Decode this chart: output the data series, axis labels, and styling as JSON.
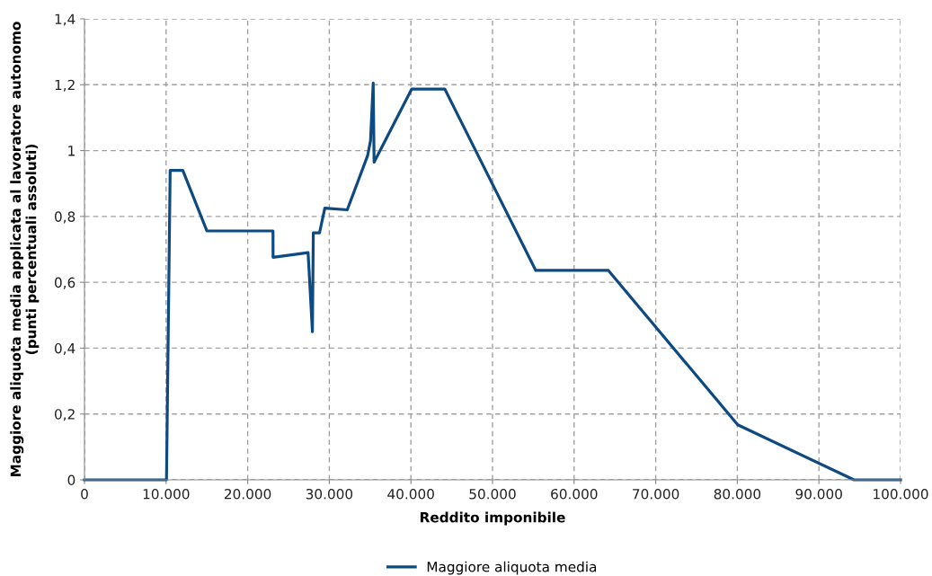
{
  "chart_data": {
    "type": "line",
    "xlabel": "Reddito imponibile",
    "ylabel": "Maggiore aliquota media applicata al lavoratore autonomo\n(punti percentuali assoluti)",
    "series": [
      {
        "name": "Maggiore aliquota media",
        "color": "#0d4a82",
        "x": [
          0,
          10050,
          10500,
          12050,
          15000,
          23100,
          23110,
          27400,
          27930,
          28040,
          28800,
          29450,
          32200,
          34700,
          35050,
          35380,
          35490,
          40100,
          44150,
          55300,
          64200,
          80050,
          94300,
          100000
        ],
        "values": [
          0,
          0,
          0.94,
          0.94,
          0.756,
          0.756,
          0.676,
          0.69,
          0.45,
          0.75,
          0.75,
          0.825,
          0.82,
          0.985,
          1.03,
          1.205,
          0.965,
          1.187,
          1.187,
          0.636,
          0.636,
          0.167,
          0,
          0
        ]
      }
    ],
    "xlim": [
      0,
      100000
    ],
    "xticks": [
      0,
      {
        "value": 10000,
        "label": "10.000"
      },
      {
        "value": 20000,
        "label": "20.000"
      },
      {
        "value": 30000,
        "label": "30.000"
      },
      {
        "value": 40000,
        "label": "40.000"
      },
      {
        "value": 50000,
        "label": "50.000"
      },
      {
        "value": 60000,
        "label": "60.000"
      },
      {
        "value": 70000,
        "label": "70.000"
      },
      {
        "value": 80000,
        "label": "80.000"
      },
      {
        "value": 90000,
        "label": "90.000"
      },
      {
        "value": 100000,
        "label": "100.000"
      }
    ],
    "ylim": [
      0,
      1.4
    ],
    "yticks": [
      0,
      {
        "value": 0.2,
        "label": "0,2"
      },
      {
        "value": 0.4,
        "label": "0,4"
      },
      {
        "value": 0.6,
        "label": "0,6"
      },
      {
        "value": 0.8,
        "label": "0,8"
      },
      1,
      {
        "value": 1.2,
        "label": "1,2"
      },
      {
        "value": 1.4,
        "label": "1,4"
      }
    ],
    "grid": true,
    "legend": "bottom",
    "marker": "none",
    "line_style": "solid"
  }
}
